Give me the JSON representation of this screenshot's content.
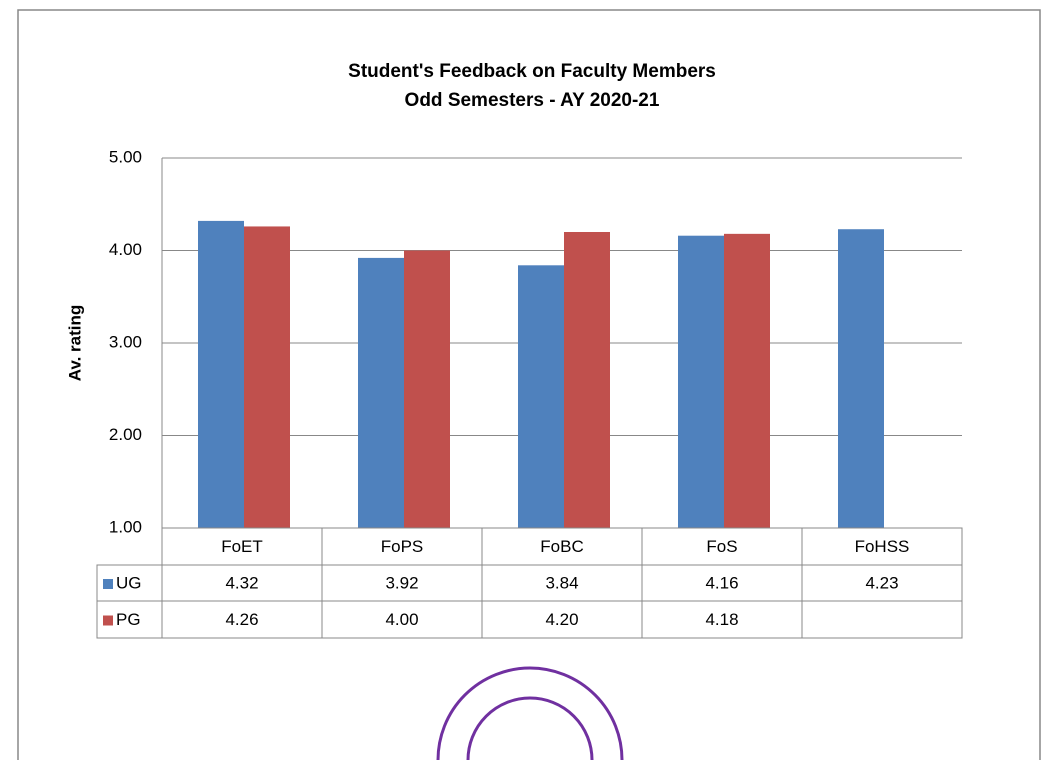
{
  "chart_data": {
    "type": "bar",
    "title": "Student's Feedback on Faculty Members",
    "subtitle": "Odd Semesters - AY 2020-21",
    "y_label": "Av. rating",
    "categories": [
      "FoET",
      "FoPS",
      "FoBC",
      "FoS",
      "FoHSS"
    ],
    "series": [
      {
        "name": "UG",
        "color": "#4f81bd",
        "values": [
          4.32,
          3.92,
          3.84,
          4.16,
          4.23
        ],
        "value_labels": [
          "4.32",
          "3.92",
          "3.84",
          "4.16",
          "4.23"
        ]
      },
      {
        "name": "PG",
        "color": "#c0504d",
        "values": [
          4.26,
          4.0,
          4.2,
          4.18,
          null
        ],
        "value_labels": [
          "4.26",
          "4.00",
          "4.20",
          "4.18",
          null
        ]
      }
    ],
    "ylim": [
      1,
      5
    ],
    "yticks": [
      {
        "value": 1,
        "label": "1.00"
      },
      {
        "value": 2,
        "label": "2.00"
      },
      {
        "value": 3,
        "label": "3.00"
      },
      {
        "value": 4,
        "label": "4.00"
      },
      {
        "value": 5,
        "label": "5.00"
      }
    ],
    "grid": true
  }
}
